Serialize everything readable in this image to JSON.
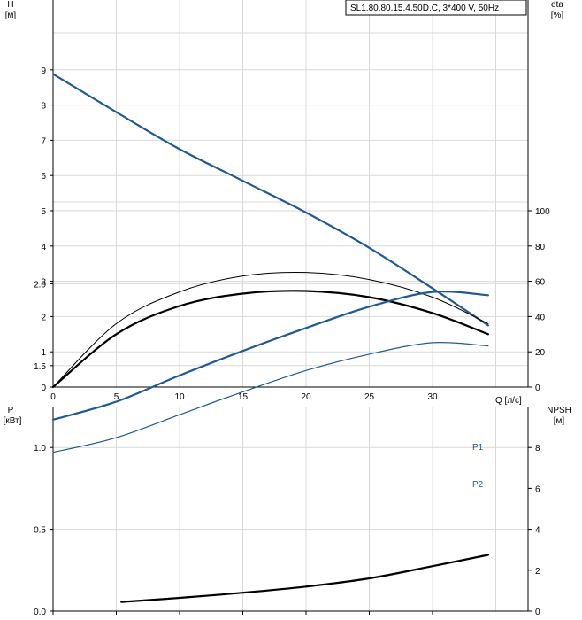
{
  "chart_data": [
    {
      "type": "line",
      "panel": "upper",
      "title": "SL1.80.80.15.4.50D.C, 3*400 V, 50Hz",
      "xlabel": "Q [л/с]",
      "ylabel_left": [
        "H",
        "[м]"
      ],
      "ylabel_right": [
        "eta",
        "[%]"
      ],
      "xlim": [
        0,
        35
      ],
      "x_ticks": [
        "0",
        "5",
        "10",
        "15",
        "20",
        "25",
        "30"
      ],
      "ylim_left": [
        0,
        10
      ],
      "y_left_ticks": [
        "0",
        "1",
        "2",
        "3",
        "4",
        "5",
        "6",
        "7",
        "8",
        "9"
      ],
      "ylim_right": [
        0,
        200
      ],
      "y_right_ticks": [
        "0",
        "20",
        "40",
        "60",
        "80",
        "100"
      ],
      "grid": true,
      "series": [
        {
          "axis": "left",
          "color": "#1f5a96",
          "width": 2.2,
          "x": [
            0,
            5,
            10,
            15,
            20,
            25,
            30,
            34.4
          ],
          "y": [
            8.88,
            7.8,
            6.75,
            5.85,
            4.95,
            3.95,
            2.8,
            1.75
          ]
        },
        {
          "axis": "right",
          "color": "#000000",
          "width": 1,
          "x": [
            0,
            5,
            10,
            15,
            20,
            25,
            30,
            34.4
          ],
          "y": [
            0,
            36,
            54,
            63,
            65,
            61,
            51,
            36
          ]
        },
        {
          "axis": "right",
          "color": "#000000",
          "width": 2.2,
          "x": [
            0,
            5,
            10,
            15,
            20,
            25,
            30,
            34.4
          ],
          "y": [
            0,
            30,
            46,
            53,
            54.5,
            51,
            42,
            30
          ]
        }
      ]
    },
    {
      "type": "line",
      "panel": "lower",
      "ylabel_left": [
        "P",
        "[кВт]"
      ],
      "ylabel_right": [
        "NPSH",
        "[м]"
      ],
      "xlim": [
        0,
        35
      ],
      "ylim_left": [
        0,
        2.5
      ],
      "y_left_ticks": [
        "0.0",
        "0.5",
        "1.0",
        "1.5",
        "2.0"
      ],
      "ylim_right": [
        0,
        10
      ],
      "y_right_ticks": [
        "0",
        "2",
        "4",
        "6",
        "8"
      ],
      "grid": true,
      "series": [
        {
          "name": "P1",
          "axis": "left",
          "color": "#1f5a96",
          "width": 2.2,
          "x": [
            0,
            5,
            10,
            15,
            20,
            25,
            30,
            34.4
          ],
          "y": [
            1.17,
            1.28,
            1.44,
            1.59,
            1.73,
            1.86,
            1.95,
            1.93
          ]
        },
        {
          "name": "P2",
          "axis": "left",
          "color": "#1f5a96",
          "width": 1.2,
          "x": [
            0,
            5,
            10,
            15,
            20,
            25,
            30,
            34.4
          ],
          "y": [
            0.97,
            1.06,
            1.2,
            1.34,
            1.47,
            1.57,
            1.64,
            1.62
          ]
        },
        {
          "axis": "right",
          "color": "#000000",
          "width": 2.2,
          "x": [
            5.4,
            10,
            15,
            20,
            25,
            30,
            34.4
          ],
          "y": [
            0.45,
            0.65,
            0.9,
            1.2,
            1.6,
            2.2,
            2.75
          ]
        }
      ]
    }
  ]
}
